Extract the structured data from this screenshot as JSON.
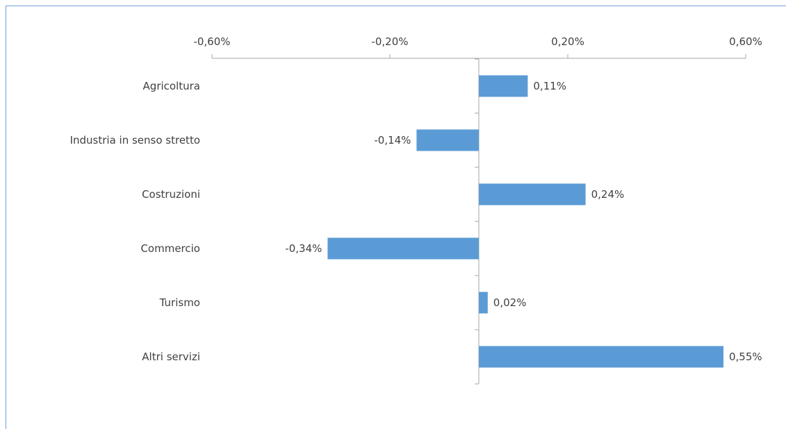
{
  "chart_data": {
    "type": "bar",
    "orientation": "horizontal",
    "categories": [
      "Agricoltura",
      "Industria in senso stretto",
      "Costruzioni",
      "Commercio",
      "Turismo",
      "Altri servizi"
    ],
    "values": [
      0.11,
      -0.14,
      0.24,
      -0.34,
      0.02,
      0.55
    ],
    "value_labels": [
      "0,11%",
      "-0,14%",
      "0,24%",
      "-0,34%",
      "0,02%",
      "0,55%"
    ],
    "xlim": [
      -0.6,
      0.6
    ],
    "ticks": [
      -0.6,
      -0.2,
      0.2,
      0.6
    ],
    "tick_labels": [
      "-0,60%",
      "-0,20%",
      "0,20%",
      "0,60%"
    ],
    "axis_position": "top",
    "grid": false,
    "bar_color": "#5b9bd5",
    "axis_color": "#a6a6a6",
    "title": "",
    "xlabel": "",
    "ylabel": ""
  }
}
